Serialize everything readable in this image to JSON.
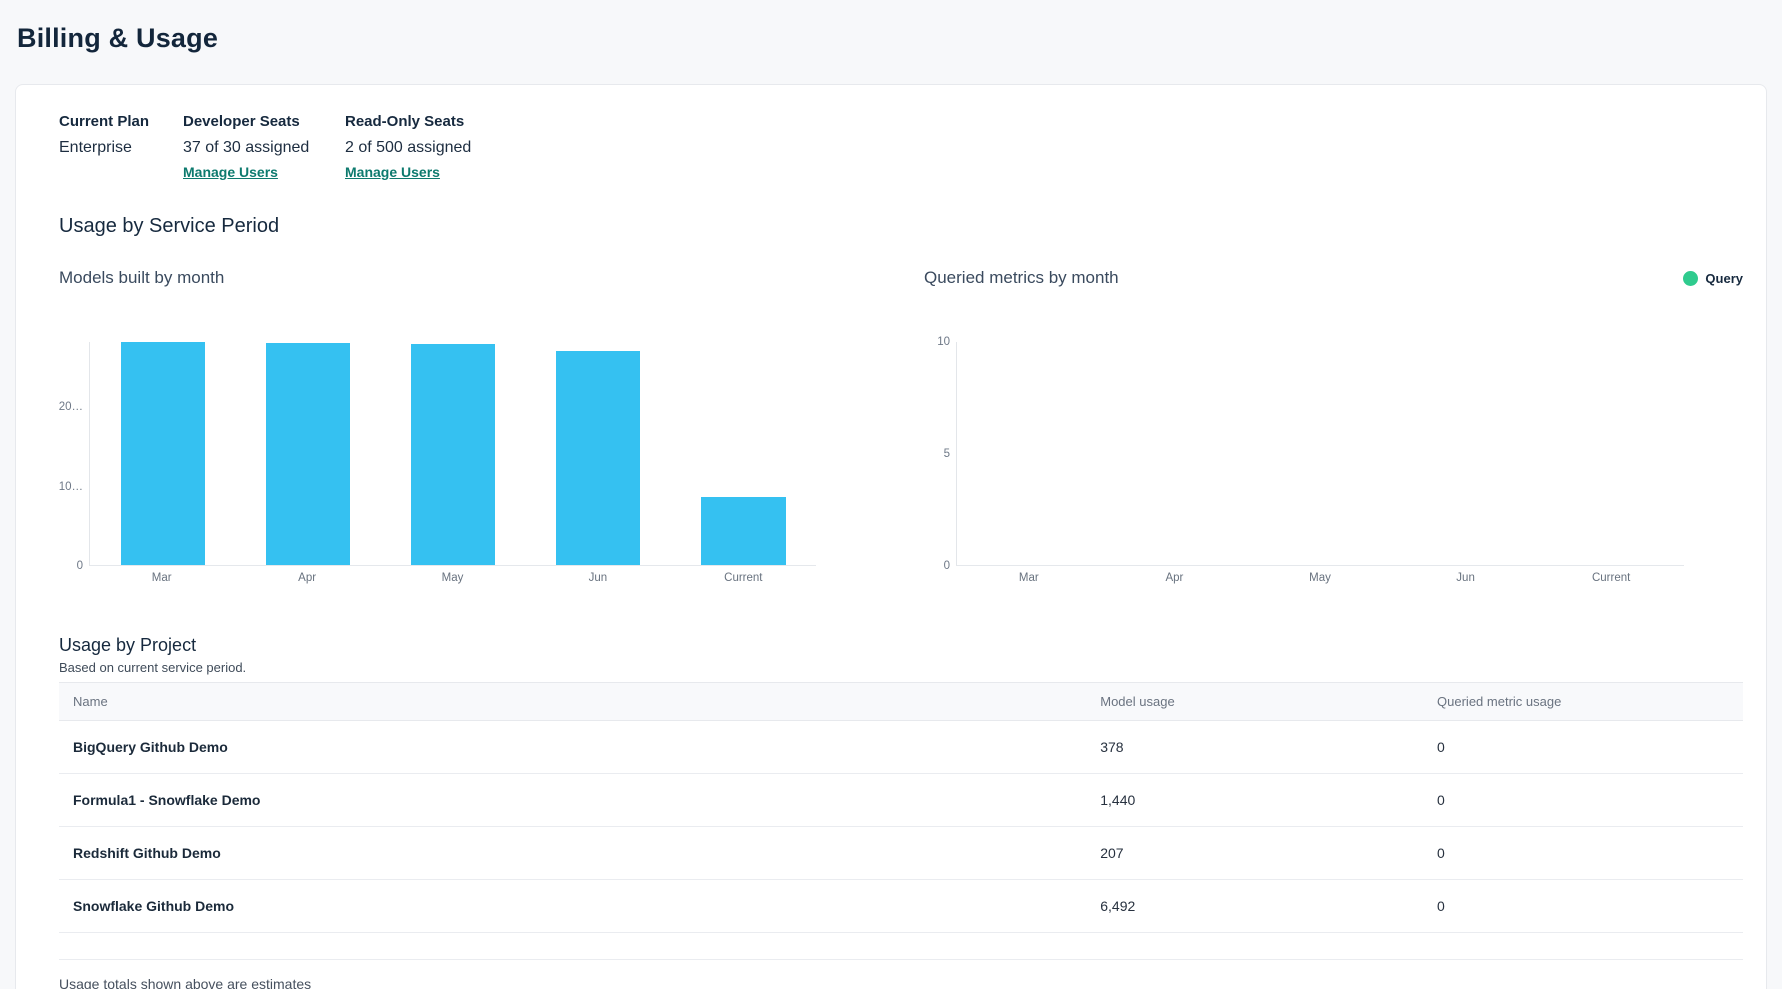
{
  "page": {
    "title": "Billing & Usage"
  },
  "colors": {
    "bar_blue": "#35c1f1",
    "legend_green": "#2fcb8e",
    "link_teal": "#0d7a6e"
  },
  "plan": {
    "current_plan": {
      "label": "Current Plan",
      "value": "Enterprise"
    },
    "developer_seats": {
      "label": "Developer Seats",
      "value": "37 of 30 assigned",
      "link": "Manage Users"
    },
    "readonly_seats": {
      "label": "Read-Only Seats",
      "value": "2 of 500 assigned",
      "link": "Manage Users"
    }
  },
  "usage_section": {
    "title": "Usage by Service Period"
  },
  "chart_data": [
    {
      "type": "bar",
      "title": "Models built by month",
      "categories": [
        "Mar",
        "Apr",
        "May",
        "Jun",
        "Current"
      ],
      "values": [
        28200,
        28100,
        28000,
        27100,
        8600
      ],
      "ylim": [
        0,
        28200
      ],
      "yticks": [
        {
          "label": "0",
          "value": 0
        },
        {
          "label": "10…",
          "value": 10000
        },
        {
          "label": "20…",
          "value": 20000
        }
      ],
      "bar_color": "#35c1f1",
      "grid": false,
      "legend_position": "none"
    },
    {
      "type": "bar",
      "title": "Queried metrics by month",
      "categories": [
        "Mar",
        "Apr",
        "May",
        "Jun",
        "Current"
      ],
      "values": [
        0,
        0,
        0,
        0,
        0
      ],
      "ylim": [
        0,
        10
      ],
      "yticks": [
        {
          "label": "0",
          "value": 0
        },
        {
          "label": "5",
          "value": 5
        },
        {
          "label": "10",
          "value": 10
        }
      ],
      "bar_color": "#2fcb8e",
      "grid": false,
      "legend_position": "top-right",
      "legend": [
        {
          "label": "Query",
          "color": "#2fcb8e"
        }
      ]
    }
  ],
  "project_table": {
    "title": "Usage by Project",
    "subtitle": "Based on current service period.",
    "columns": [
      "Name",
      "Model usage",
      "Queried metric usage"
    ],
    "rows": [
      {
        "name": "BigQuery Github Demo",
        "model_usage": "378",
        "queried_metric_usage": "0"
      },
      {
        "name": "Formula1 - Snowflake Demo",
        "model_usage": "1,440",
        "queried_metric_usage": "0"
      },
      {
        "name": "Redshift Github Demo",
        "model_usage": "207",
        "queried_metric_usage": "0"
      },
      {
        "name": "Snowflake Github Demo",
        "model_usage": "6,492",
        "queried_metric_usage": "0"
      }
    ]
  },
  "footer": {
    "note": "Usage totals shown above are estimates"
  }
}
